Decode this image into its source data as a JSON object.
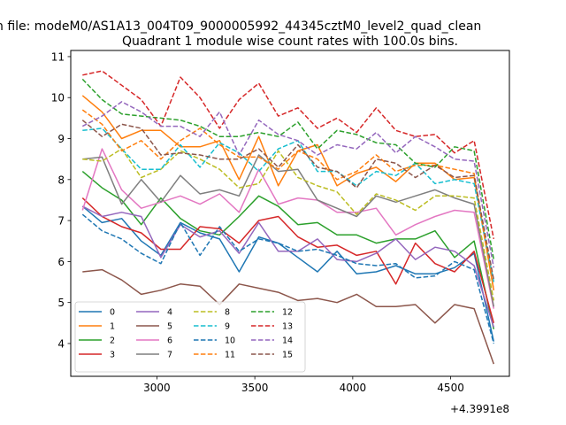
{
  "chart_data": {
    "type": "line",
    "suptitle": "n file: modeM0/AS1A13_004T09_9000005992_44345cztM0_level2_quad_clean",
    "title": "Quadrant 1 module wise count rates with 100.0s bins.",
    "xlabel": "",
    "ylabel": "",
    "x_offset_label": "+4.3991e8",
    "xlim": [
      2560,
      4800
    ],
    "ylim": [
      3.2,
      11.15
    ],
    "xticks": [
      3000,
      3500,
      4000,
      4500
    ],
    "yticks": [
      4,
      5,
      6,
      7,
      8,
      9,
      10,
      11
    ],
    "grid": false,
    "legend_position": "lower-left",
    "legend_columns": 4,
    "x": [
      2620,
      2720,
      2820,
      2920,
      3020,
      3120,
      3220,
      3320,
      3420,
      3520,
      3620,
      3720,
      3820,
      3920,
      4020,
      4120,
      4220,
      4320,
      4420,
      4520,
      4620,
      4720
    ],
    "series": [
      {
        "name": "0",
        "color": "#1f77b4",
        "style": "solid",
        "values": [
          7.35,
          6.95,
          7.05,
          6.5,
          6.15,
          6.95,
          6.7,
          6.55,
          5.75,
          6.6,
          6.45,
          6.1,
          5.75,
          6.25,
          5.7,
          5.75,
          5.9,
          5.7,
          5.7,
          5.85,
          6.2,
          4.05
        ]
      },
      {
        "name": "1",
        "color": "#ff7f0e",
        "style": "solid",
        "values": [
          10.05,
          9.65,
          9.0,
          9.2,
          9.2,
          8.8,
          8.8,
          8.95,
          8.0,
          9.05,
          7.85,
          8.7,
          8.85,
          7.85,
          8.15,
          8.3,
          7.95,
          8.4,
          8.4,
          8.0,
          8.05,
          5.3
        ]
      },
      {
        "name": "2",
        "color": "#2ca02c",
        "style": "solid",
        "values": [
          8.2,
          7.8,
          7.5,
          6.9,
          7.55,
          7.05,
          6.75,
          6.65,
          7.1,
          7.6,
          7.35,
          6.9,
          6.95,
          6.65,
          6.65,
          6.45,
          6.55,
          6.55,
          6.75,
          6.1,
          6.5,
          4.35
        ]
      },
      {
        "name": "3",
        "color": "#d62728",
        "style": "solid",
        "values": [
          7.55,
          7.1,
          6.85,
          6.7,
          6.3,
          6.3,
          6.85,
          6.8,
          6.45,
          7.0,
          7.1,
          6.6,
          6.35,
          6.4,
          6.15,
          6.25,
          5.45,
          6.45,
          5.95,
          5.75,
          6.25,
          4.5
        ]
      },
      {
        "name": "4",
        "color": "#9467bd",
        "style": "solid",
        "values": [
          7.35,
          7.1,
          7.2,
          7.1,
          6.1,
          6.9,
          6.6,
          6.75,
          6.2,
          6.95,
          6.25,
          6.25,
          6.55,
          6.05,
          6.0,
          6.2,
          6.55,
          6.05,
          6.35,
          6.25,
          5.9,
          4.4
        ]
      },
      {
        "name": "5",
        "color": "#8c564b",
        "style": "solid",
        "values": [
          5.75,
          5.8,
          5.55,
          5.2,
          5.3,
          5.45,
          5.4,
          4.95,
          5.45,
          5.35,
          5.25,
          5.05,
          5.1,
          5.0,
          5.2,
          4.9,
          4.9,
          4.95,
          4.5,
          4.95,
          4.85,
          3.5
        ]
      },
      {
        "name": "6",
        "color": "#e377c2",
        "style": "solid",
        "values": [
          7.25,
          8.75,
          7.75,
          7.3,
          7.45,
          7.6,
          7.4,
          7.65,
          7.2,
          8.25,
          7.4,
          7.55,
          7.5,
          7.2,
          7.2,
          7.3,
          6.65,
          6.9,
          7.1,
          7.25,
          7.2,
          4.85
        ]
      },
      {
        "name": "7",
        "color": "#7f7f7f",
        "style": "solid",
        "values": [
          8.5,
          8.55,
          7.4,
          8.0,
          7.45,
          8.1,
          7.65,
          7.75,
          7.6,
          8.6,
          8.2,
          8.25,
          7.5,
          7.3,
          7.1,
          7.6,
          7.45,
          7.6,
          7.75,
          7.55,
          7.4,
          4.9
        ]
      },
      {
        "name": "8",
        "color": "#bcbd22",
        "style": "dashed",
        "values": [
          8.5,
          8.45,
          8.75,
          8.05,
          8.25,
          8.7,
          8.5,
          8.25,
          7.8,
          7.9,
          8.7,
          8.05,
          7.85,
          7.7,
          7.15,
          7.65,
          7.5,
          7.25,
          7.6,
          7.6,
          7.55,
          5.05
        ]
      },
      {
        "name": "9",
        "color": "#17becf",
        "style": "dashed",
        "values": [
          9.2,
          9.25,
          8.75,
          8.25,
          8.25,
          8.85,
          8.3,
          8.9,
          8.65,
          8.2,
          8.75,
          8.95,
          8.2,
          8.2,
          7.85,
          8.2,
          8.1,
          8.4,
          7.9,
          8.0,
          7.9,
          5.5
        ]
      },
      {
        "name": "10",
        "color": "#1f77b4",
        "style": "dashed",
        "values": [
          7.15,
          6.75,
          6.55,
          6.2,
          5.95,
          6.95,
          6.15,
          6.85,
          6.25,
          6.55,
          6.45,
          6.25,
          6.3,
          6.15,
          5.95,
          5.9,
          5.95,
          5.6,
          5.65,
          6.0,
          5.8,
          4.0
        ]
      },
      {
        "name": "11",
        "color": "#ff7f0e",
        "style": "dashed",
        "values": [
          9.7,
          9.35,
          8.7,
          8.95,
          8.5,
          8.95,
          9.25,
          8.85,
          8.55,
          8.55,
          8.25,
          8.7,
          8.5,
          8.0,
          8.2,
          8.6,
          8.2,
          8.35,
          8.35,
          8.25,
          8.15,
          5.3
        ]
      },
      {
        "name": "12",
        "color": "#2ca02c",
        "style": "dashed",
        "values": [
          10.45,
          9.95,
          9.6,
          9.55,
          9.5,
          9.45,
          9.3,
          9.05,
          9.05,
          9.15,
          9.05,
          9.4,
          8.75,
          9.2,
          9.1,
          8.9,
          8.85,
          8.4,
          8.3,
          8.8,
          8.7,
          6.05
        ]
      },
      {
        "name": "13",
        "color": "#d62728",
        "style": "dashed",
        "values": [
          10.55,
          10.65,
          10.3,
          9.95,
          9.3,
          10.5,
          10.0,
          9.25,
          9.95,
          10.35,
          9.55,
          9.75,
          9.25,
          9.5,
          9.15,
          9.75,
          9.2,
          9.05,
          9.1,
          8.65,
          8.95,
          6.55
        ]
      },
      {
        "name": "14",
        "color": "#9467bd",
        "style": "dashed",
        "values": [
          9.3,
          9.55,
          9.9,
          9.65,
          9.3,
          9.3,
          9.05,
          9.65,
          8.6,
          9.45,
          9.1,
          8.95,
          8.6,
          8.85,
          8.75,
          9.15,
          8.65,
          9.05,
          8.8,
          8.5,
          8.45,
          5.85
        ]
      },
      {
        "name": "15",
        "color": "#8c564b",
        "style": "dashed",
        "values": [
          9.45,
          9.05,
          9.35,
          9.25,
          8.6,
          8.65,
          8.6,
          8.5,
          8.5,
          8.75,
          8.3,
          8.85,
          8.3,
          8.2,
          7.8,
          8.5,
          8.4,
          8.05,
          8.35,
          8.05,
          8.1,
          5.55
        ]
      }
    ]
  }
}
